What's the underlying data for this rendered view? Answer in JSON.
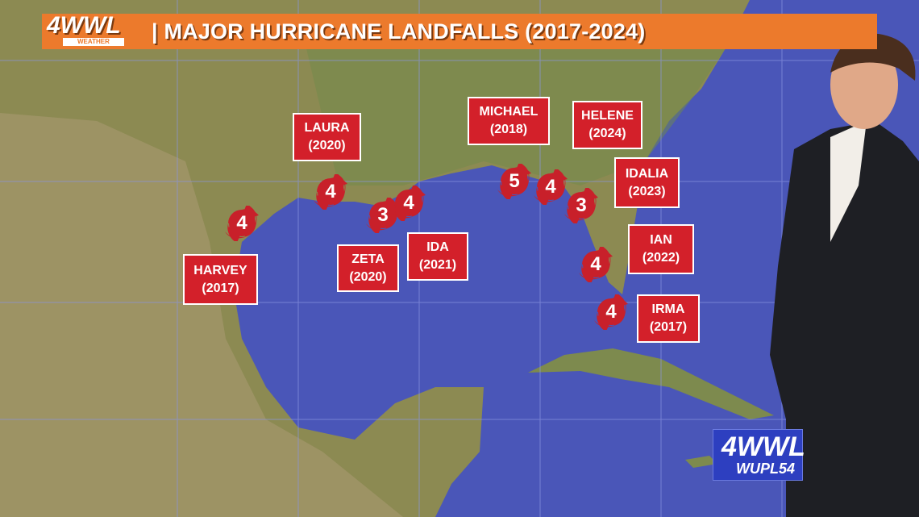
{
  "header": {
    "logo": "4WWL",
    "logo_sub": "WEATHER",
    "title": "| MAJOR HURRICANE LANDFALLS (2017-2024)"
  },
  "colors": {
    "banner": "#ec7a2c",
    "label_bg": "#d3202a",
    "ocean": "#4a56b8",
    "land": "#8a8a4e"
  },
  "storms": [
    {
      "name": "HARVEY",
      "year": "(2017)",
      "category": "4"
    },
    {
      "name": "LAURA",
      "year": "(2020)",
      "category": "4"
    },
    {
      "name": "ZETA",
      "year": "(2020)",
      "category": "3"
    },
    {
      "name": "IDA",
      "year": "(2021)",
      "category": "4"
    },
    {
      "name": "MICHAEL",
      "year": "(2018)",
      "category": "5"
    },
    {
      "name": "HELENE",
      "year": "(2024)",
      "category": "4"
    },
    {
      "name": "IDALIA",
      "year": "(2023)",
      "category": "3"
    },
    {
      "name": "IAN",
      "year": "(2022)",
      "category": "4"
    },
    {
      "name": "IRMA",
      "year": "(2017)",
      "category": "4"
    }
  ],
  "station_bug": {
    "line1": "4WWL",
    "line2": "WUPL54"
  }
}
